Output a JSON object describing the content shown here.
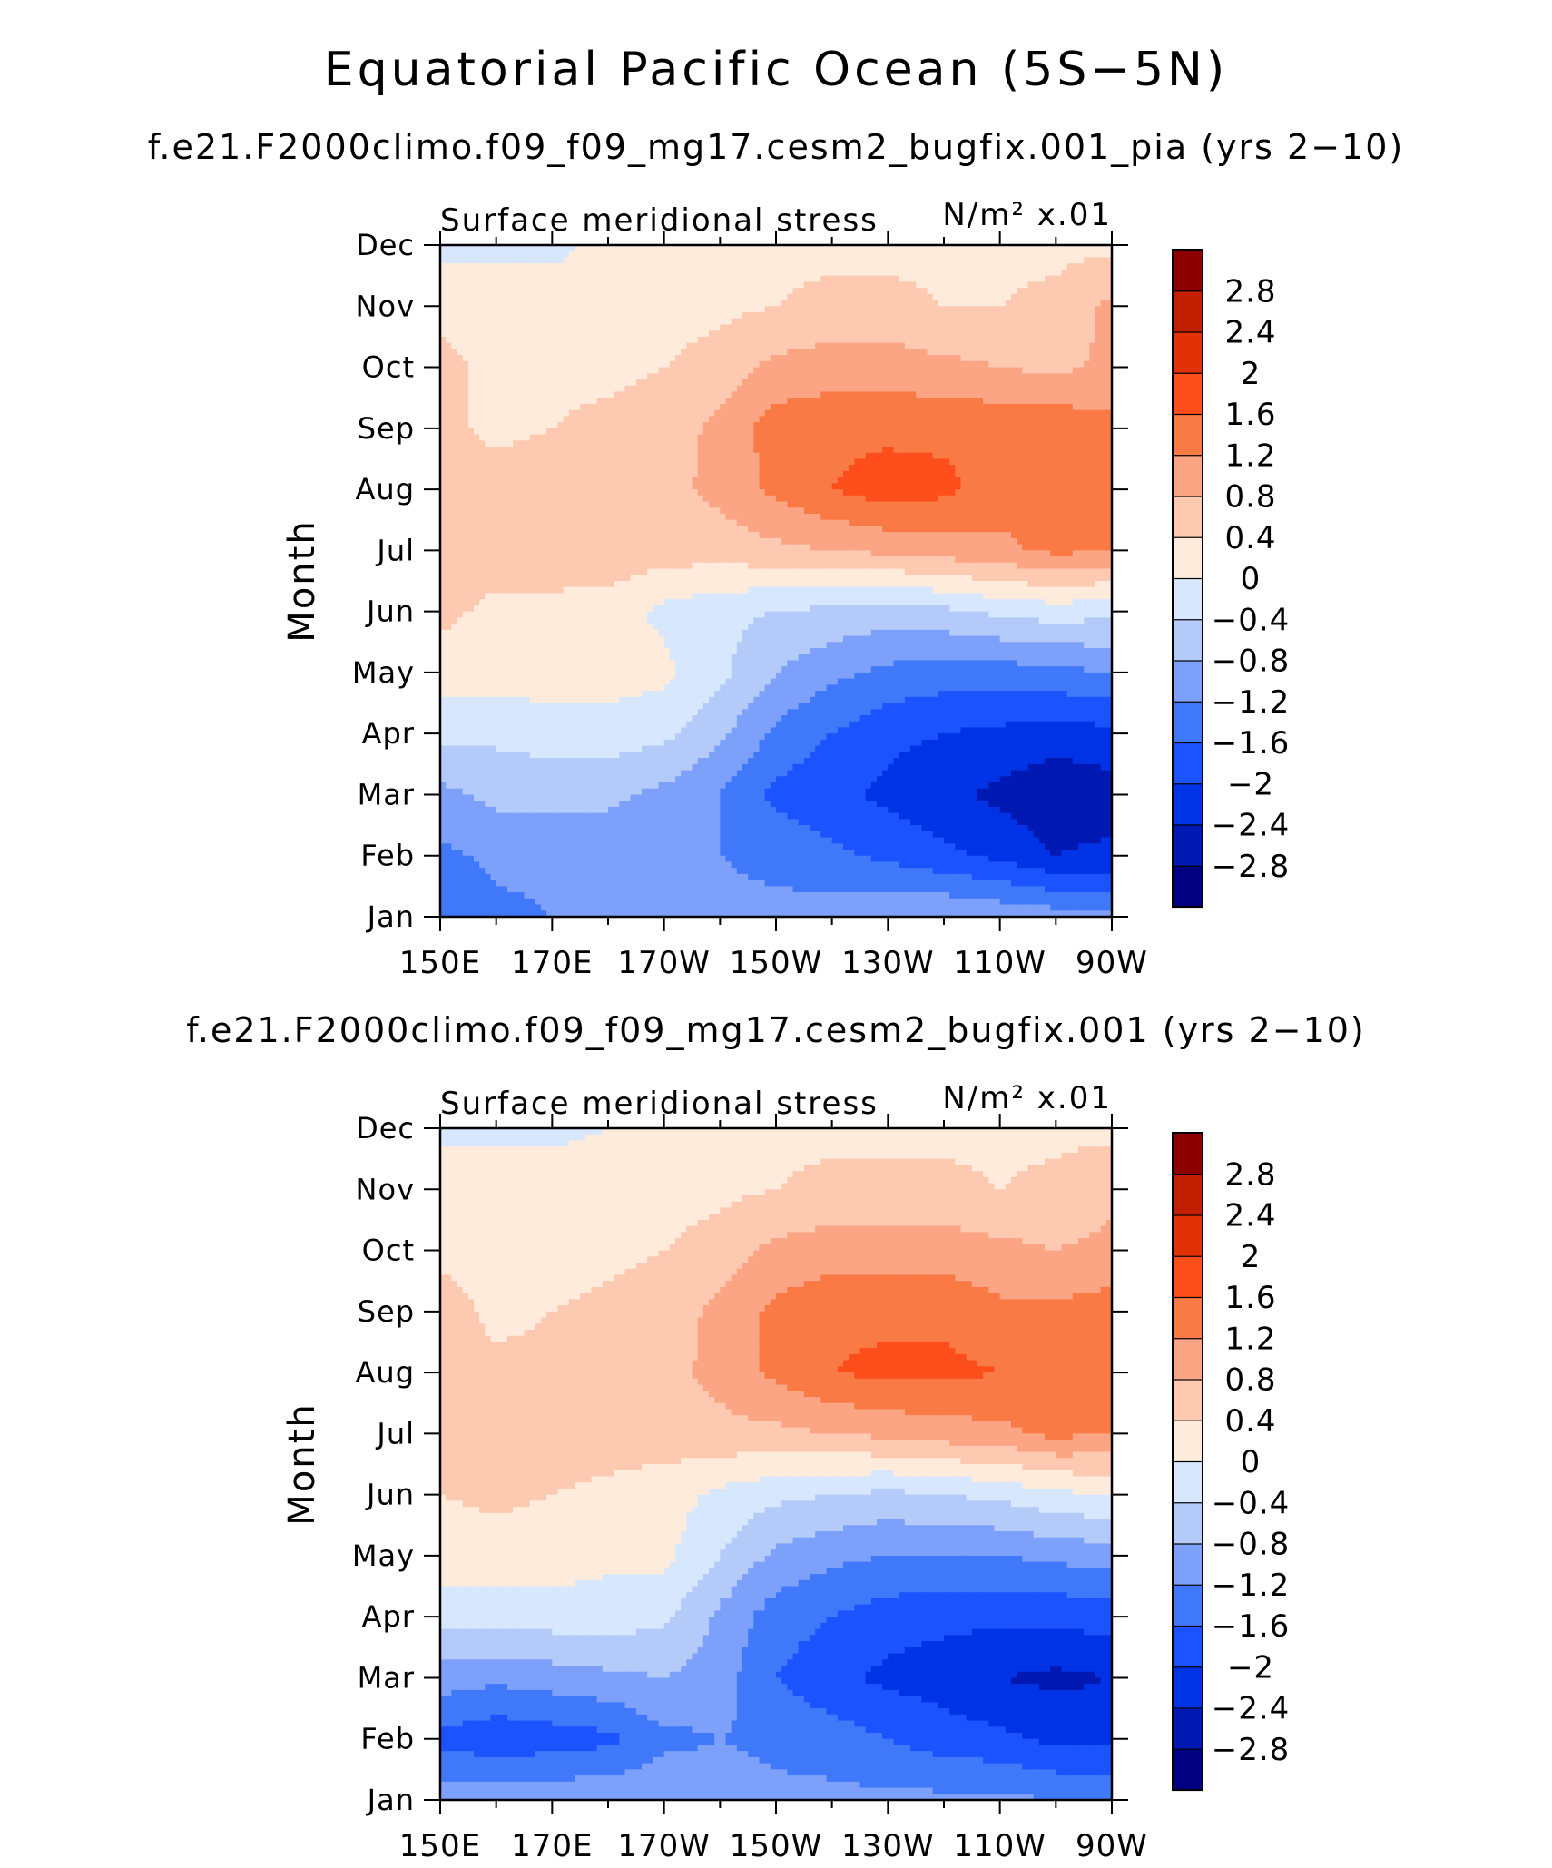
{
  "figure": {
    "title": "Equatorial Pacific Ocean (5S−5N)"
  },
  "colors": {
    "levels": [
      "#000080",
      "#0019b3",
      "#0033e6",
      "#1a53ff",
      "#4078fa",
      "#7da0fa",
      "#b4cbfa",
      "#d7e7fd",
      "#ffebdc",
      "#fdc9b1",
      "#fca585",
      "#fa7a45",
      "#fd4e1b",
      "#e33106",
      "#c21e00",
      "#8c0000"
    ]
  },
  "chart_data": [
    {
      "type": "heatmap",
      "subtitle": "f.e21.F2000climo.f09_f09_mg17.cesm2_bugfix.001_pia (yrs 2−10)",
      "left_label": "Surface meridional stress",
      "units_label": "N/m² x.01",
      "ylabel": "Month",
      "xlabel": "",
      "x_ticks": [
        "150E",
        "170E",
        "170W",
        "150W",
        "130W",
        "110W",
        "90W"
      ],
      "x_values": [
        150,
        170,
        190,
        210,
        230,
        250,
        270
      ],
      "xlim": [
        150,
        270
      ],
      "y_ticks": [
        "Jan",
        "Feb",
        "Mar",
        "Apr",
        "May",
        "Jun",
        "Jul",
        "Aug",
        "Sep",
        "Oct",
        "Nov",
        "Dec"
      ],
      "ylim": [
        1,
        12
      ],
      "colorbar_labels": [
        "2.8",
        "2.4",
        "2",
        "1.6",
        "1.2",
        "0.8",
        "0.4",
        "0",
        "−0.4",
        "−0.8",
        "−1.2",
        "−1.6",
        "−2",
        "−2.4",
        "−2.8"
      ],
      "grid_x": [
        150,
        160,
        170,
        180,
        190,
        200,
        210,
        220,
        230,
        240,
        250,
        260,
        270
      ],
      "grid_months": [
        "Jan",
        "Feb",
        "Mar",
        "Apr",
        "May",
        "Jun",
        "Jul",
        "Aug",
        "Sep",
        "Oct",
        "Nov",
        "Dec"
      ],
      "values": [
        [
          -1.6,
          -1.3,
          -1.2,
          -1.2,
          -1.2,
          -1.1,
          -1.1,
          -1.0,
          -0.8,
          -0.8,
          -0.9,
          -1.0,
          -1.1
        ],
        [
          -1.3,
          -1.1,
          -1.1,
          -1.1,
          -1.1,
          -1.2,
          -1.3,
          -1.5,
          -1.7,
          -1.9,
          -2.1,
          -2.4,
          -2.3
        ],
        [
          -0.9,
          -0.7,
          -0.7,
          -0.7,
          -0.9,
          -1.2,
          -1.7,
          -1.9,
          -2.1,
          -2.3,
          -2.5,
          -2.7,
          -2.6
        ],
        [
          -0.3,
          -0.3,
          -0.2,
          -0.2,
          -0.3,
          -0.7,
          -1.3,
          -1.6,
          -1.9,
          -2.0,
          -2.1,
          -2.2,
          -2.1
        ],
        [
          0.2,
          0.2,
          0.2,
          0.2,
          0.1,
          -0.3,
          -0.8,
          -1.1,
          -1.3,
          -1.4,
          -1.4,
          -1.3,
          -1.2
        ],
        [
          0.5,
          0.3,
          0.3,
          0.2,
          -0.1,
          -0.3,
          -0.4,
          -0.5,
          -0.6,
          -0.5,
          -0.3,
          -0.2,
          -0.3
        ],
        [
          0.6,
          0.6,
          0.6,
          0.7,
          0.6,
          0.6,
          0.7,
          0.8,
          0.9,
          1.0,
          1.1,
          1.3,
          1.2
        ],
        [
          0.6,
          0.6,
          0.6,
          0.6,
          0.7,
          0.9,
          1.3,
          1.6,
          1.8,
          1.7,
          1.4,
          1.4,
          1.3
        ],
        [
          0.5,
          0.3,
          0.4,
          0.5,
          0.6,
          0.9,
          1.4,
          1.5,
          1.5,
          1.5,
          1.5,
          1.5,
          1.3
        ],
        [
          0.5,
          0.3,
          0.3,
          0.3,
          0.4,
          0.6,
          0.9,
          1.0,
          1.0,
          0.9,
          0.8,
          0.7,
          0.9
        ],
        [
          0.3,
          0.2,
          0.2,
          0.2,
          0.2,
          0.3,
          0.4,
          0.5,
          0.5,
          0.4,
          0.4,
          0.5,
          0.9
        ],
        [
          -0.1,
          -0.1,
          -0.1,
          0.1,
          0.2,
          0.2,
          0.3,
          0.3,
          0.3,
          0.3,
          0.3,
          0.3,
          0.3
        ]
      ]
    },
    {
      "type": "heatmap",
      "subtitle": "f.e21.F2000climo.f09_f09_mg17.cesm2_bugfix.001 (yrs 2−10)",
      "left_label": "Surface meridional stress",
      "units_label": "N/m² x.01",
      "ylabel": "Month",
      "xlabel": "",
      "x_ticks": [
        "150E",
        "170E",
        "170W",
        "150W",
        "130W",
        "110W",
        "90W"
      ],
      "x_values": [
        150,
        170,
        190,
        210,
        230,
        250,
        270
      ],
      "xlim": [
        150,
        270
      ],
      "y_ticks": [
        "Jan",
        "Feb",
        "Mar",
        "Apr",
        "May",
        "Jun",
        "Jul",
        "Aug",
        "Sep",
        "Oct",
        "Nov",
        "Dec"
      ],
      "ylim": [
        1,
        12
      ],
      "colorbar_labels": [
        "2.8",
        "2.4",
        "2",
        "1.6",
        "1.2",
        "0.8",
        "0.4",
        "0",
        "−0.4",
        "−0.8",
        "−1.2",
        "−1.6",
        "−2",
        "−2.4",
        "−2.8"
      ],
      "grid_x": [
        150,
        160,
        170,
        180,
        190,
        200,
        210,
        220,
        230,
        240,
        250,
        260,
        270
      ],
      "grid_months": [
        "Jan",
        "Feb",
        "Mar",
        "Apr",
        "May",
        "Jun",
        "Jul",
        "Aug",
        "Sep",
        "Oct",
        "Nov",
        "Dec"
      ],
      "values": [
        [
          -1.0,
          -0.9,
          -0.9,
          -0.9,
          -0.9,
          -1.0,
          -1.1,
          -1.1,
          -1.1,
          -1.1,
          -1.1,
          -1.2,
          -1.3
        ],
        [
          -1.7,
          -1.9,
          -1.8,
          -1.7,
          -1.3,
          -1.2,
          -1.3,
          -1.4,
          -1.6,
          -1.8,
          -1.9,
          -2.1,
          -2.1
        ],
        [
          -1.0,
          -1.1,
          -1.0,
          -0.9,
          -0.8,
          -1.0,
          -1.6,
          -1.9,
          -2.1,
          -2.2,
          -2.4,
          -2.5,
          -2.4
        ],
        [
          -0.2,
          -0.2,
          -0.2,
          -0.2,
          -0.3,
          -0.9,
          -1.4,
          -1.6,
          -1.8,
          -1.9,
          -1.9,
          -1.9,
          -1.8
        ],
        [
          0.2,
          0.2,
          0.2,
          0.1,
          0.1,
          -0.4,
          -0.9,
          -1.1,
          -1.2,
          -1.2,
          -1.2,
          -1.1,
          -1.0
        ],
        [
          0.4,
          0.5,
          0.4,
          0.3,
          0.2,
          -0.1,
          -0.3,
          -0.4,
          -0.5,
          -0.4,
          -0.3,
          -0.1,
          0.0
        ],
        [
          0.5,
          0.4,
          0.6,
          0.6,
          0.6,
          0.7,
          0.7,
          0.8,
          0.9,
          1.0,
          1.1,
          1.3,
          1.2
        ],
        [
          0.5,
          0.5,
          0.5,
          0.5,
          0.7,
          0.9,
          1.3,
          1.6,
          1.7,
          1.7,
          1.6,
          1.4,
          1.4
        ],
        [
          0.6,
          0.3,
          0.4,
          0.5,
          0.6,
          0.9,
          1.3,
          1.5,
          1.5,
          1.5,
          1.3,
          1.3,
          1.4
        ],
        [
          0.3,
          0.2,
          0.2,
          0.3,
          0.4,
          0.6,
          0.9,
          1.0,
          1.0,
          1.0,
          0.9,
          0.8,
          0.9
        ],
        [
          0.2,
          0.2,
          0.2,
          0.2,
          0.2,
          0.3,
          0.4,
          0.5,
          0.5,
          0.5,
          0.4,
          0.5,
          0.7
        ],
        [
          -0.1,
          -0.1,
          -0.1,
          0.0,
          0.1,
          0.2,
          0.3,
          0.3,
          0.3,
          0.3,
          0.3,
          0.3,
          0.3
        ]
      ]
    }
  ]
}
